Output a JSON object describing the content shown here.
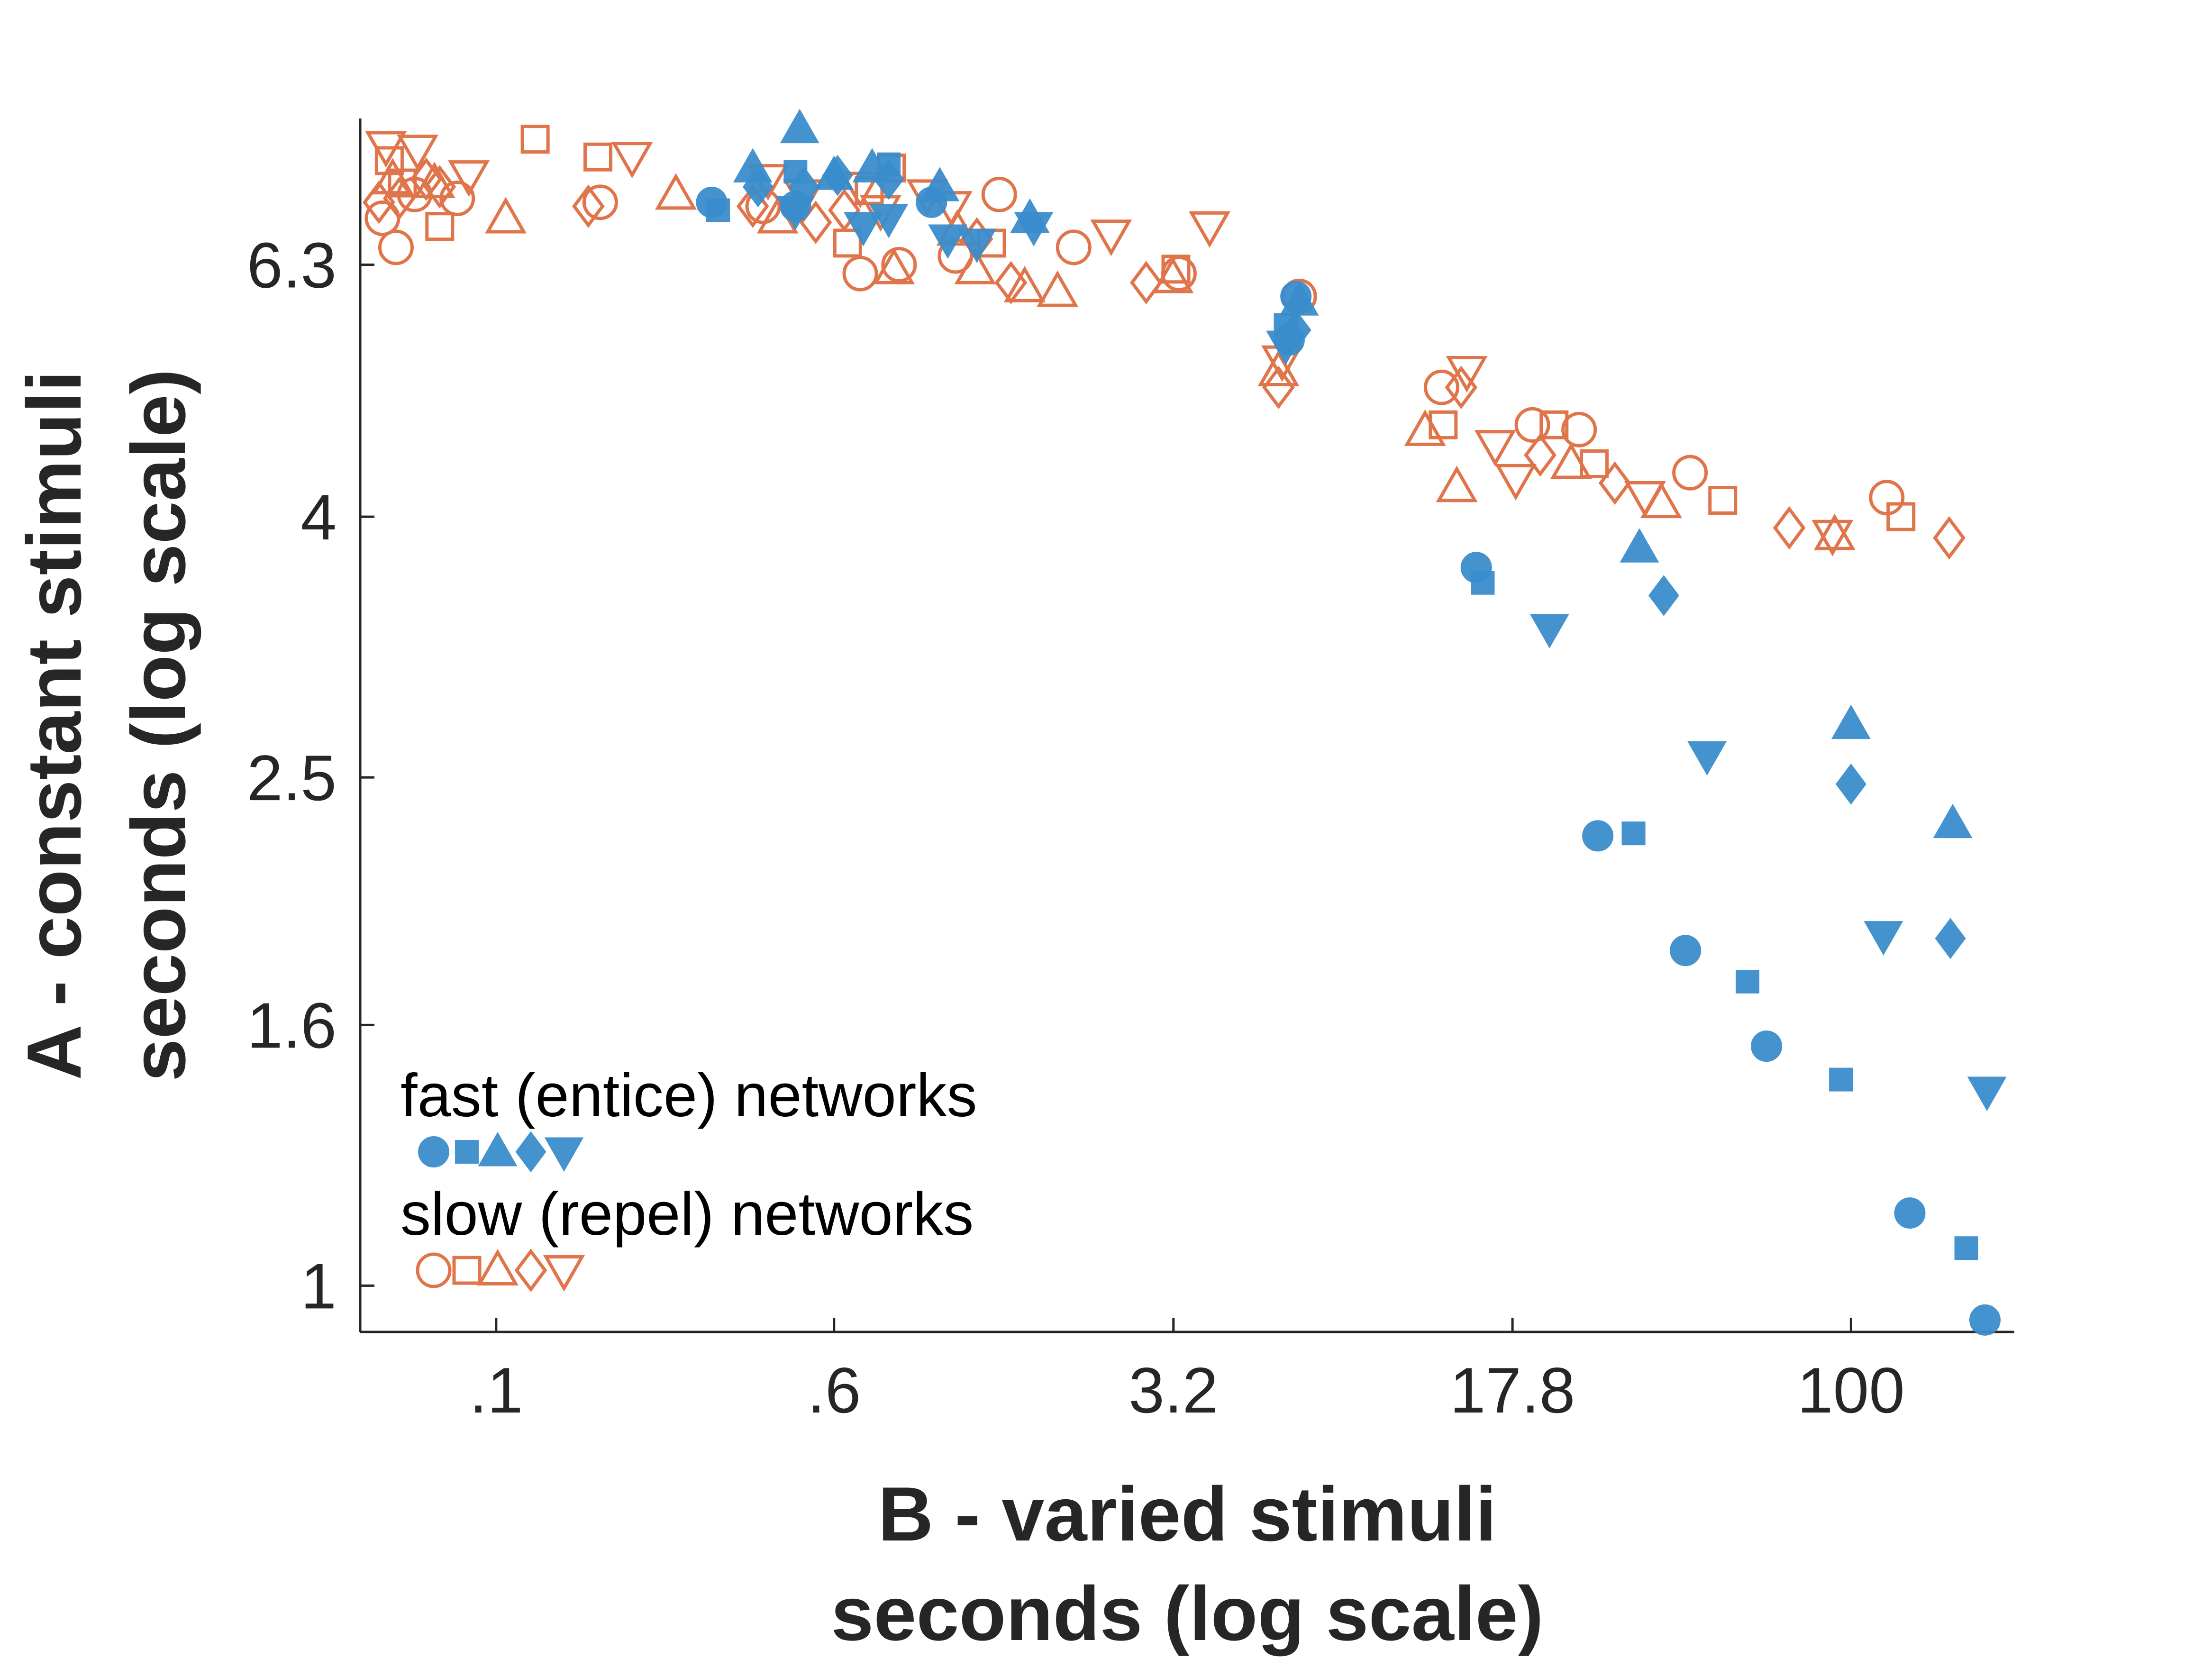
{
  "chart_data": {
    "type": "scatter",
    "title": "",
    "xlabel": [
      "B - varied stimuli",
      "seconds (log scale)"
    ],
    "ylabel": [
      "A - constant stimuli",
      "seconds (log scale)"
    ],
    "x_scale": "log",
    "y_scale": "log",
    "xlim": [
      0.05,
      230
    ],
    "ylim": [
      0.92,
      8.2
    ],
    "x_ticks": [
      0.1,
      0.56,
      3.16,
      17.8,
      100
    ],
    "x_tick_labels": [
      ".1",
      ".6",
      "3.2",
      "17.8",
      "100"
    ],
    "y_ticks": [
      1,
      1.6,
      2.5,
      4,
      6.3
    ],
    "y_tick_labels": [
      "1",
      "1.6",
      "2.5",
      "4",
      "6.3"
    ],
    "grid": false,
    "legend": {
      "placement": "lower-left",
      "entries": [
        {
          "label": "fast (entice) networks",
          "series": "fast",
          "markers": [
            "circle",
            "square",
            "triangle-up",
            "diamond",
            "triangle-down"
          ]
        },
        {
          "label": "slow (repel) networks",
          "series": "slow",
          "markers": [
            "circle",
            "square",
            "triangle-up",
            "diamond",
            "triangle-down"
          ]
        }
      ]
    },
    "colors": {
      "fast": "#3a8dcc",
      "slow": "#e0744a",
      "axis": "#262626"
    },
    "series": [
      {
        "key": "fast",
        "filled": true,
        "points": [
          {
            "m": "circle",
            "x": 0.3,
            "y": 7.05
          },
          {
            "m": "circle",
            "x": 0.46,
            "y": 7.0
          },
          {
            "m": "circle",
            "x": 0.92,
            "y": 7.05
          },
          {
            "m": "circle",
            "x": 5.7,
            "y": 5.5
          },
          {
            "m": "circle",
            "x": 5.9,
            "y": 5.95
          },
          {
            "m": "circle",
            "x": 14.8,
            "y": 3.65
          },
          {
            "m": "circle",
            "x": 27.5,
            "y": 2.25
          },
          {
            "m": "circle",
            "x": 43,
            "y": 1.83
          },
          {
            "m": "circle",
            "x": 65,
            "y": 1.54
          },
          {
            "m": "circle",
            "x": 135,
            "y": 1.14
          },
          {
            "m": "circle",
            "x": 198,
            "y": 0.94
          },
          {
            "m": "square",
            "x": 0.31,
            "y": 6.95
          },
          {
            "m": "square",
            "x": 0.46,
            "y": 7.45
          },
          {
            "m": "square",
            "x": 0.74,
            "y": 7.55
          },
          {
            "m": "square",
            "x": 5.6,
            "y": 5.65
          },
          {
            "m": "square",
            "x": 15.3,
            "y": 3.55
          },
          {
            "m": "square",
            "x": 33,
            "y": 2.26
          },
          {
            "m": "square",
            "x": 59,
            "y": 1.73
          },
          {
            "m": "square",
            "x": 95,
            "y": 1.45
          },
          {
            "m": "square",
            "x": 180,
            "y": 1.07
          },
          {
            "m": "triangle-up",
            "x": 0.37,
            "y": 7.5
          },
          {
            "m": "triangle-up",
            "x": 0.47,
            "y": 8.05
          },
          {
            "m": "triangle-up",
            "x": 0.56,
            "y": 7.4
          },
          {
            "m": "triangle-up",
            "x": 0.68,
            "y": 7.5
          },
          {
            "m": "triangle-up",
            "x": 0.96,
            "y": 7.25
          },
          {
            "m": "triangle-up",
            "x": 1.52,
            "y": 6.85
          },
          {
            "m": "triangle-up",
            "x": 6.0,
            "y": 5.9
          },
          {
            "m": "triangle-up",
            "x": 34,
            "y": 3.78
          },
          {
            "m": "triangle-up",
            "x": 100,
            "y": 2.75
          },
          {
            "m": "triangle-up",
            "x": 168,
            "y": 2.3
          },
          {
            "m": "diamond",
            "x": 0.38,
            "y": 7.25
          },
          {
            "m": "diamond",
            "x": 0.48,
            "y": 7.25
          },
          {
            "m": "diamond",
            "x": 0.57,
            "y": 7.4
          },
          {
            "m": "diamond",
            "x": 0.74,
            "y": 7.35
          },
          {
            "m": "diamond",
            "x": 5.9,
            "y": 5.6
          },
          {
            "m": "diamond",
            "x": 38.5,
            "y": 3.47
          },
          {
            "m": "diamond",
            "x": 100,
            "y": 2.47
          },
          {
            "m": "diamond",
            "x": 166,
            "y": 1.87
          },
          {
            "m": "triangle-down",
            "x": 0.46,
            "y": 6.95
          },
          {
            "m": "triangle-down",
            "x": 0.65,
            "y": 6.75
          },
          {
            "m": "triangle-down",
            "x": 0.74,
            "y": 6.85
          },
          {
            "m": "triangle-down",
            "x": 1.0,
            "y": 6.6
          },
          {
            "m": "triangle-down",
            "x": 1.16,
            "y": 6.55
          },
          {
            "m": "triangle-down",
            "x": 1.55,
            "y": 6.75
          },
          {
            "m": "triangle-down",
            "x": 5.6,
            "y": 5.45
          },
          {
            "m": "triangle-down",
            "x": 21.5,
            "y": 3.27
          },
          {
            "m": "triangle-down",
            "x": 48,
            "y": 2.6
          },
          {
            "m": "triangle-down",
            "x": 118,
            "y": 1.88
          },
          {
            "m": "triangle-down",
            "x": 200,
            "y": 1.42
          }
        ]
      },
      {
        "key": "slow",
        "filled": false,
        "points": [
          {
            "m": "circle",
            "x": 0.056,
            "y": 6.85
          },
          {
            "m": "circle",
            "x": 0.06,
            "y": 6.5
          },
          {
            "m": "circle",
            "x": 0.066,
            "y": 7.15
          },
          {
            "m": "circle",
            "x": 0.082,
            "y": 7.1
          },
          {
            "m": "circle",
            "x": 0.17,
            "y": 7.05
          },
          {
            "m": "circle",
            "x": 0.39,
            "y": 7.0
          },
          {
            "m": "circle",
            "x": 0.64,
            "y": 6.2
          },
          {
            "m": "circle",
            "x": 0.78,
            "y": 6.3
          },
          {
            "m": "circle",
            "x": 1.04,
            "y": 6.4
          },
          {
            "m": "circle",
            "x": 1.3,
            "y": 7.15
          },
          {
            "m": "circle",
            "x": 1.9,
            "y": 6.5
          },
          {
            "m": "circle",
            "x": 3.25,
            "y": 6.2
          },
          {
            "m": "circle",
            "x": 6.0,
            "y": 5.95
          },
          {
            "m": "circle",
            "x": 12.4,
            "y": 5.05
          },
          {
            "m": "circle",
            "x": 19.7,
            "y": 4.72
          },
          {
            "m": "circle",
            "x": 25,
            "y": 4.68
          },
          {
            "m": "circle",
            "x": 44,
            "y": 4.33
          },
          {
            "m": "circle",
            "x": 120,
            "y": 4.14
          },
          {
            "m": "square",
            "x": 0.058,
            "y": 7.6
          },
          {
            "m": "square",
            "x": 0.062,
            "y": 7.3
          },
          {
            "m": "square",
            "x": 0.075,
            "y": 6.75
          },
          {
            "m": "square",
            "x": 0.122,
            "y": 7.9
          },
          {
            "m": "square",
            "x": 0.168,
            "y": 7.65
          },
          {
            "m": "square",
            "x": 0.6,
            "y": 6.55
          },
          {
            "m": "square",
            "x": 0.67,
            "y": 7.2
          },
          {
            "m": "square",
            "x": 0.75,
            "y": 7.5
          },
          {
            "m": "square",
            "x": 1.25,
            "y": 6.55
          },
          {
            "m": "square",
            "x": 3.2,
            "y": 6.25
          },
          {
            "m": "square",
            "x": 12.5,
            "y": 4.72
          },
          {
            "m": "square",
            "x": 22,
            "y": 4.72
          },
          {
            "m": "square",
            "x": 27,
            "y": 4.4
          },
          {
            "m": "square",
            "x": 52,
            "y": 4.12
          },
          {
            "m": "square",
            "x": 129,
            "y": 4.0
          },
          {
            "m": "triangle-up",
            "x": 0.059,
            "y": 7.35
          },
          {
            "m": "triangle-up",
            "x": 0.073,
            "y": 7.3
          },
          {
            "m": "triangle-up",
            "x": 0.105,
            "y": 6.85
          },
          {
            "m": "triangle-up",
            "x": 0.25,
            "y": 7.15
          },
          {
            "m": "triangle-up",
            "x": 0.42,
            "y": 6.85
          },
          {
            "m": "triangle-up",
            "x": 0.76,
            "y": 6.25
          },
          {
            "m": "triangle-up",
            "x": 1.05,
            "y": 6.7
          },
          {
            "m": "triangle-up",
            "x": 1.15,
            "y": 6.25
          },
          {
            "m": "triangle-up",
            "x": 1.48,
            "y": 6.05
          },
          {
            "m": "triangle-up",
            "x": 1.75,
            "y": 6.0
          },
          {
            "m": "triangle-up",
            "x": 3.15,
            "y": 6.15
          },
          {
            "m": "triangle-up",
            "x": 5.4,
            "y": 5.2
          },
          {
            "m": "triangle-up",
            "x": 11.4,
            "y": 4.67
          },
          {
            "m": "triangle-up",
            "x": 13.4,
            "y": 4.22
          },
          {
            "m": "triangle-up",
            "x": 24,
            "y": 4.4
          },
          {
            "m": "triangle-up",
            "x": 38,
            "y": 4.1
          },
          {
            "m": "triangle-up",
            "x": 92,
            "y": 3.87
          },
          {
            "m": "diamond",
            "x": 0.055,
            "y": 7.05
          },
          {
            "m": "diamond",
            "x": 0.061,
            "y": 7.1
          },
          {
            "m": "diamond",
            "x": 0.07,
            "y": 7.35
          },
          {
            "m": "diamond",
            "x": 0.075,
            "y": 7.25
          },
          {
            "m": "diamond",
            "x": 0.16,
            "y": 7.0
          },
          {
            "m": "diamond",
            "x": 0.37,
            "y": 7.0
          },
          {
            "m": "diamond",
            "x": 0.51,
            "y": 6.8
          },
          {
            "m": "diamond",
            "x": 0.59,
            "y": 6.95
          },
          {
            "m": "diamond",
            "x": 1.16,
            "y": 6.6
          },
          {
            "m": "diamond",
            "x": 1.38,
            "y": 6.1
          },
          {
            "m": "diamond",
            "x": 2.75,
            "y": 6.1
          },
          {
            "m": "diamond",
            "x": 5.4,
            "y": 5.05
          },
          {
            "m": "diamond",
            "x": 13.7,
            "y": 5.05
          },
          {
            "m": "diamond",
            "x": 20.5,
            "y": 4.47
          },
          {
            "m": "diamond",
            "x": 30,
            "y": 4.25
          },
          {
            "m": "diamond",
            "x": 73,
            "y": 3.92
          },
          {
            "m": "diamond",
            "x": 165,
            "y": 3.85
          },
          {
            "m": "triangle-down",
            "x": 0.057,
            "y": 7.8
          },
          {
            "m": "triangle-down",
            "x": 0.067,
            "y": 7.75
          },
          {
            "m": "triangle-down",
            "x": 0.087,
            "y": 7.4
          },
          {
            "m": "triangle-down",
            "x": 0.2,
            "y": 7.65
          },
          {
            "m": "triangle-down",
            "x": 0.4,
            "y": 7.35
          },
          {
            "m": "triangle-down",
            "x": 0.48,
            "y": 7.15
          },
          {
            "m": "triangle-down",
            "x": 0.64,
            "y": 7.25
          },
          {
            "m": "triangle-down",
            "x": 0.71,
            "y": 6.95
          },
          {
            "m": "triangle-down",
            "x": 0.9,
            "y": 7.15
          },
          {
            "m": "triangle-down",
            "x": 1.02,
            "y": 7.0
          },
          {
            "m": "triangle-down",
            "x": 2.3,
            "y": 6.65
          },
          {
            "m": "triangle-down",
            "x": 3.8,
            "y": 6.75
          },
          {
            "m": "triangle-down",
            "x": 5.5,
            "y": 5.3
          },
          {
            "m": "triangle-down",
            "x": 14.1,
            "y": 5.2
          },
          {
            "m": "triangle-down",
            "x": 16.3,
            "y": 4.55
          },
          {
            "m": "triangle-down",
            "x": 18.1,
            "y": 4.28
          },
          {
            "m": "triangle-down",
            "x": 35,
            "y": 4.15
          },
          {
            "m": "triangle-down",
            "x": 91,
            "y": 3.87
          }
        ]
      }
    ]
  }
}
